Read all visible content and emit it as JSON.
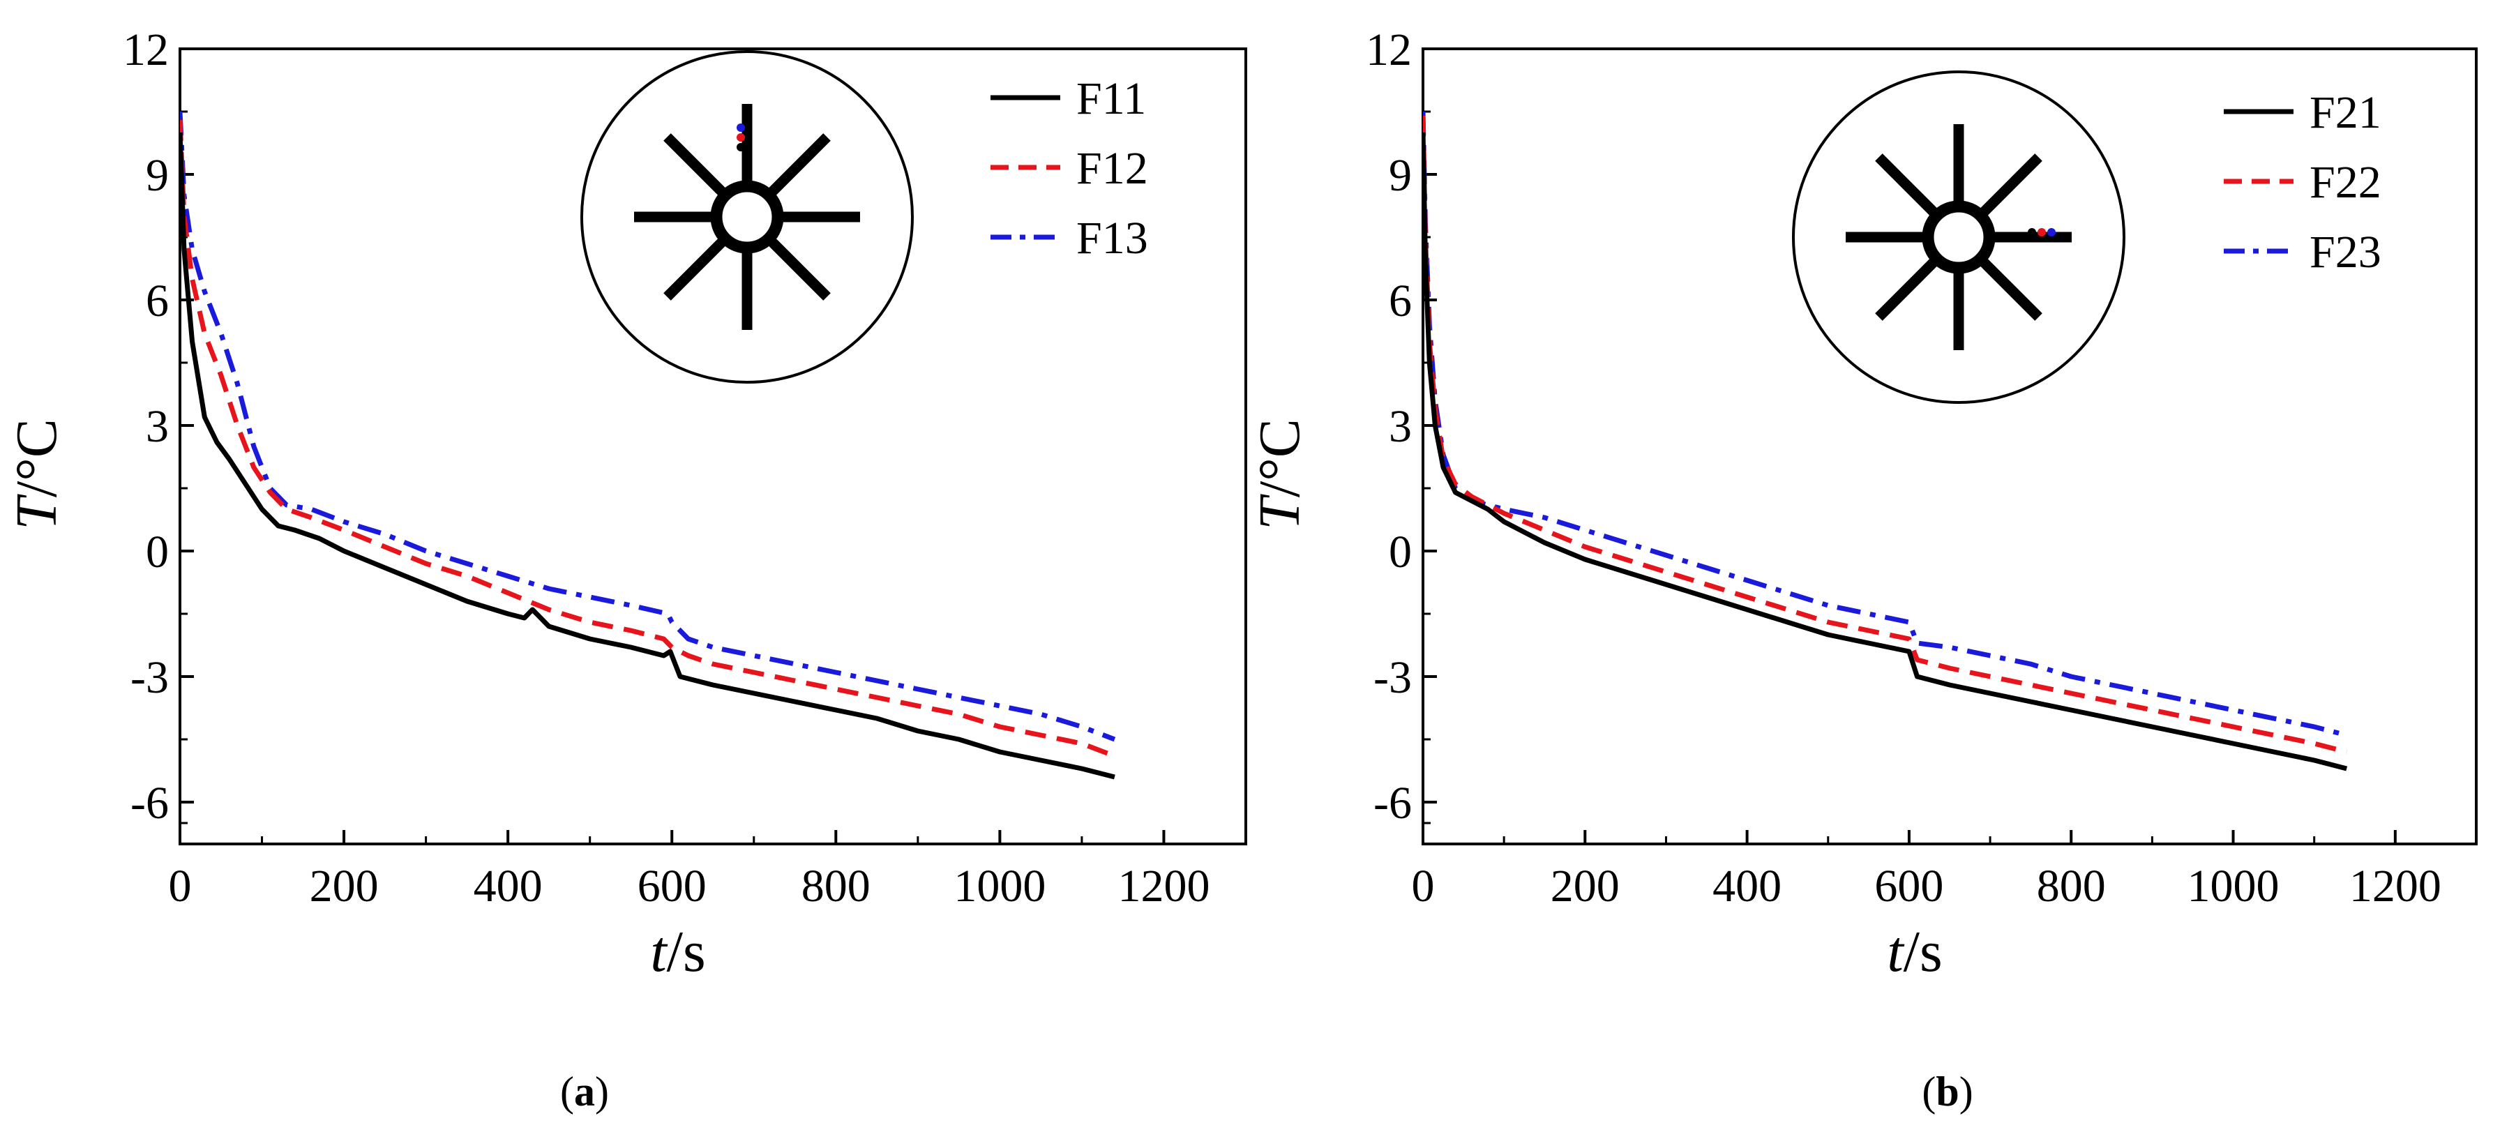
{
  "colors": {
    "F1": "#000000",
    "F2": "#e8141c",
    "F3": "#1a1adc",
    "frame": "#000000"
  },
  "chart_data": [
    {
      "type": "line",
      "panel": "a",
      "caption": {
        "open": "(",
        "letter": "a",
        "close": ")"
      },
      "xlabel": {
        "var": "t",
        "unit": "/s"
      },
      "ylabel": {
        "var": "T",
        "unit": "/°C"
      },
      "xlim": [
        0,
        1300
      ],
      "ylim": [
        -7,
        12
      ],
      "xticks": [
        0,
        200,
        400,
        600,
        800,
        1000,
        1200
      ],
      "yticks": [
        -6,
        -3,
        0,
        3,
        6,
        9,
        12
      ],
      "legend_position": "top-right",
      "inset": "circular cross-section with eight radial fins, measuring points F11–F13 on the upper vertical fin",
      "series": [
        {
          "name": "F11",
          "style": "solid",
          "color": "#000000",
          "x": [
            0,
            5,
            15,
            30,
            45,
            60,
            80,
            100,
            120,
            140,
            170,
            200,
            250,
            300,
            350,
            400,
            420,
            430,
            450,
            500,
            550,
            590,
            598,
            610,
            650,
            700,
            750,
            800,
            850,
            900,
            950,
            1000,
            1050,
            1100,
            1140
          ],
          "y": [
            10.0,
            7.2,
            5.0,
            3.2,
            2.6,
            2.2,
            1.6,
            1.0,
            0.6,
            0.5,
            0.3,
            0.0,
            -0.4,
            -0.8,
            -1.2,
            -1.5,
            -1.6,
            -1.4,
            -1.8,
            -2.1,
            -2.3,
            -2.5,
            -2.4,
            -3.0,
            -3.2,
            -3.4,
            -3.6,
            -3.8,
            -4.0,
            -4.3,
            -4.5,
            -4.8,
            -5.0,
            -5.2,
            -5.4
          ]
        },
        {
          "name": "F12",
          "style": "dashed",
          "color": "#e8141c",
          "x": [
            0,
            5,
            15,
            30,
            50,
            70,
            90,
            110,
            130,
            160,
            200,
            250,
            300,
            350,
            400,
            450,
            500,
            550,
            590,
            600,
            620,
            650,
            700,
            750,
            800,
            850,
            900,
            950,
            1000,
            1050,
            1100,
            1140
          ],
          "y": [
            10.3,
            8.0,
            6.5,
            5.2,
            4.2,
            3.0,
            2.0,
            1.4,
            1.0,
            0.8,
            0.5,
            0.1,
            -0.3,
            -0.6,
            -1.0,
            -1.4,
            -1.7,
            -1.9,
            -2.1,
            -2.3,
            -2.5,
            -2.7,
            -2.9,
            -3.1,
            -3.3,
            -3.5,
            -3.7,
            -3.9,
            -4.2,
            -4.4,
            -4.6,
            -4.9
          ]
        },
        {
          "name": "F13",
          "style": "dashdot",
          "color": "#1a1adc",
          "x": [
            0,
            5,
            15,
            30,
            50,
            70,
            90,
            110,
            130,
            160,
            200,
            250,
            300,
            350,
            400,
            450,
            500,
            550,
            595,
            600,
            620,
            650,
            700,
            750,
            800,
            850,
            900,
            950,
            1000,
            1050,
            1100,
            1140
          ],
          "y": [
            10.5,
            8.5,
            7.2,
            6.2,
            5.2,
            4.0,
            2.5,
            1.5,
            1.1,
            1.0,
            0.7,
            0.4,
            0.0,
            -0.3,
            -0.6,
            -0.9,
            -1.1,
            -1.3,
            -1.5,
            -1.7,
            -2.1,
            -2.3,
            -2.5,
            -2.7,
            -2.9,
            -3.1,
            -3.3,
            -3.5,
            -3.7,
            -3.9,
            -4.2,
            -4.5
          ]
        }
      ]
    },
    {
      "type": "line",
      "panel": "b",
      "caption": {
        "open": "(",
        "letter": "b",
        "close": ")"
      },
      "xlabel": {
        "var": "t",
        "unit": "/s"
      },
      "ylabel": {
        "var": "T",
        "unit": "/°C"
      },
      "xlim": [
        0,
        1300
      ],
      "ylim": [
        -7,
        12
      ],
      "xticks": [
        0,
        200,
        400,
        600,
        800,
        1000,
        1200
      ],
      "yticks": [
        -6,
        -3,
        0,
        3,
        6,
        9,
        12
      ],
      "legend_position": "top-right",
      "inset": "circular cross-section with eight radial fins, measuring points F21–F23 on the right horizontal fin",
      "series": [
        {
          "name": "F21",
          "style": "solid",
          "color": "#000000",
          "x": [
            0,
            3,
            8,
            15,
            25,
            40,
            60,
            80,
            100,
            150,
            200,
            250,
            300,
            350,
            400,
            450,
            500,
            550,
            600,
            610,
            650,
            700,
            750,
            800,
            850,
            900,
            950,
            1000,
            1050,
            1100,
            1140
          ],
          "y": [
            10.0,
            7.0,
            4.5,
            3.0,
            2.0,
            1.4,
            1.2,
            1.0,
            0.7,
            0.2,
            -0.2,
            -0.5,
            -0.8,
            -1.1,
            -1.4,
            -1.7,
            -2.0,
            -2.2,
            -2.4,
            -3.0,
            -3.2,
            -3.4,
            -3.6,
            -3.8,
            -4.0,
            -4.2,
            -4.4,
            -4.6,
            -4.8,
            -5.0,
            -5.2
          ]
        },
        {
          "name": "F22",
          "style": "dashed",
          "color": "#e8141c",
          "x": [
            0,
            3,
            8,
            15,
            25,
            40,
            60,
            80,
            100,
            150,
            200,
            250,
            300,
            350,
            400,
            450,
            500,
            550,
            600,
            610,
            650,
            700,
            750,
            800,
            850,
            900,
            950,
            1000,
            1050,
            1100,
            1140
          ],
          "y": [
            10.4,
            7.5,
            5.0,
            3.4,
            2.2,
            1.6,
            1.3,
            1.1,
            0.9,
            0.5,
            0.1,
            -0.2,
            -0.5,
            -0.8,
            -1.1,
            -1.4,
            -1.7,
            -1.9,
            -2.1,
            -2.6,
            -2.8,
            -3.0,
            -3.2,
            -3.4,
            -3.6,
            -3.8,
            -4.0,
            -4.2,
            -4.4,
            -4.6,
            -4.8
          ]
        },
        {
          "name": "F23",
          "style": "dashdot",
          "color": "#1a1adc",
          "x": [
            0,
            3,
            8,
            15,
            25,
            40,
            60,
            80,
            100,
            150,
            200,
            250,
            300,
            350,
            400,
            450,
            500,
            550,
            600,
            610,
            650,
            700,
            750,
            800,
            850,
            900,
            950,
            1000,
            1050,
            1100,
            1140
          ],
          "y": [
            10.5,
            7.8,
            5.4,
            3.6,
            2.3,
            1.5,
            1.2,
            1.1,
            1.0,
            0.8,
            0.5,
            0.2,
            -0.1,
            -0.4,
            -0.7,
            -1.0,
            -1.3,
            -1.5,
            -1.7,
            -2.2,
            -2.3,
            -2.5,
            -2.7,
            -3.0,
            -3.2,
            -3.4,
            -3.6,
            -3.8,
            -4.0,
            -4.2,
            -4.4
          ]
        }
      ]
    }
  ]
}
